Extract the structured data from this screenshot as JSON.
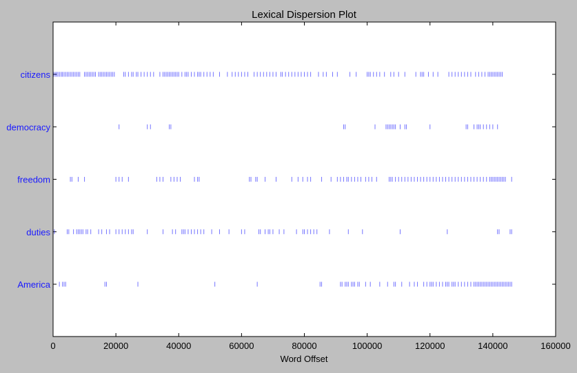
{
  "chart_data": {
    "type": "scatter",
    "title": "Lexical Dispersion Plot",
    "xlabel": "Word Offset",
    "ylabel": "",
    "xlim": [
      0,
      160000
    ],
    "xticks": [
      "0",
      "20000",
      "40000",
      "60000",
      "80000",
      "100000",
      "120000",
      "140000",
      "160000"
    ],
    "grid": false,
    "mark_color": "#0000ff",
    "categories": [
      "citizens",
      "democracy",
      "freedom",
      "duties",
      "America"
    ],
    "series": [
      {
        "name": "citizens",
        "x": [
          300,
          800,
          1200,
          1600,
          2100,
          2600,
          3000,
          3500,
          4000,
          4500,
          5000,
          5500,
          6000,
          6500,
          7000,
          7500,
          8000,
          8500,
          10000,
          10500,
          11000,
          11500,
          12000,
          12500,
          13000,
          13500,
          14500,
          15000,
          15500,
          16000,
          16500,
          17000,
          17500,
          18000,
          18500,
          19000,
          19500,
          22500,
          23000,
          24000,
          25000,
          25500,
          26500,
          27000,
          28000,
          29000,
          30000,
          31000,
          32000,
          34000,
          35000,
          35500,
          36000,
          36500,
          37000,
          37500,
          38000,
          38500,
          39000,
          39500,
          40000,
          41000,
          42000,
          42500,
          43000,
          44000,
          45000,
          46000,
          46500,
          47000,
          48000,
          49000,
          50000,
          51000,
          53000,
          55500,
          57000,
          58000,
          59000,
          60000,
          61000,
          62000,
          64000,
          65000,
          66000,
          67000,
          68000,
          69000,
          70000,
          71000,
          72500,
          73000,
          74000,
          75000,
          76000,
          77000,
          78000,
          79000,
          80000,
          81000,
          82000,
          84500,
          86000,
          87000,
          89000,
          90500,
          94500,
          96500,
          100000,
          100500,
          101000,
          102000,
          103000,
          104000,
          105500,
          107500,
          108500,
          110000,
          112000,
          115500,
          117000,
          117500,
          118000,
          119500,
          121000,
          122500,
          126000,
          127000,
          128000,
          129000,
          130000,
          131000,
          132000,
          133000,
          134500,
          135500,
          136500,
          137500,
          138500,
          139000,
          139500,
          140000,
          140500,
          141000,
          141500,
          142000,
          142500,
          143000
        ]
      },
      {
        "name": "democracy",
        "x": [
          21000,
          30000,
          31000,
          37000,
          37500,
          92500,
          93000,
          102500,
          106000,
          106500,
          107000,
          107500,
          108000,
          108500,
          109000,
          110500,
          112000,
          112500,
          120000,
          131500,
          132000,
          134000,
          135000,
          135500,
          136000,
          137000,
          138000,
          139000,
          140000,
          141500
        ]
      },
      {
        "name": "freedom",
        "x": [
          5500,
          6000,
          8000,
          10000,
          20000,
          21000,
          22000,
          24000,
          33000,
          34000,
          35000,
          37500,
          38500,
          39500,
          40500,
          45000,
          46000,
          46500,
          62500,
          63000,
          64500,
          65000,
          67500,
          71000,
          76000,
          78000,
          79500,
          81000,
          82000,
          85500,
          88500,
          90500,
          91500,
          92500,
          93500,
          94000,
          95000,
          96000,
          97000,
          98000,
          99500,
          100500,
          101500,
          103000,
          107000,
          107500,
          108000,
          109000,
          110000,
          111000,
          112000,
          113000,
          114000,
          115000,
          116000,
          117000,
          118000,
          119000,
          120000,
          121000,
          122000,
          123000,
          124000,
          125000,
          126000,
          127000,
          128000,
          129000,
          130000,
          131000,
          132000,
          133000,
          134000,
          135000,
          136000,
          137000,
          138000,
          139000,
          139500,
          140000,
          140500,
          141000,
          141500,
          142000,
          142500,
          143000,
          143500,
          144000,
          146000
        ]
      },
      {
        "name": "duties",
        "x": [
          400,
          4500,
          5000,
          6500,
          7500,
          8000,
          8500,
          9000,
          9500,
          10500,
          11000,
          12000,
          14500,
          15500,
          17000,
          18000,
          20000,
          21000,
          22000,
          23000,
          24000,
          25000,
          25500,
          30000,
          35000,
          38000,
          39000,
          41000,
          41500,
          42000,
          43000,
          44000,
          45000,
          46000,
          47000,
          48000,
          50500,
          53000,
          56000,
          60000,
          61000,
          65500,
          66000,
          67500,
          68500,
          69000,
          70000,
          72000,
          73500,
          77500,
          79500,
          80000,
          81000,
          82000,
          83000,
          84000,
          88000,
          94000,
          98500,
          110500,
          125500,
          141500,
          142000,
          145500,
          146000
        ]
      },
      {
        "name": "America",
        "x": [
          2000,
          3000,
          3500,
          4000,
          16500,
          17000,
          27000,
          51500,
          65000,
          85000,
          85500,
          91500,
          92000,
          93000,
          93500,
          94000,
          95000,
          95500,
          96000,
          97000,
          97500,
          99500,
          101000,
          104000,
          106500,
          108500,
          109000,
          111000,
          113500,
          115000,
          116000,
          118000,
          119000,
          120000,
          120500,
          121000,
          122000,
          123000,
          124000,
          125000,
          125500,
          126000,
          127000,
          127500,
          128000,
          129000,
          130000,
          131000,
          132000,
          133000,
          134000,
          134500,
          135000,
          135500,
          136000,
          136500,
          137000,
          137500,
          138000,
          138500,
          139000,
          139500,
          140000,
          140500,
          141000,
          141500,
          142000,
          142500,
          143000,
          143500,
          144000,
          144500,
          145000,
          145500,
          146000
        ]
      }
    ]
  }
}
